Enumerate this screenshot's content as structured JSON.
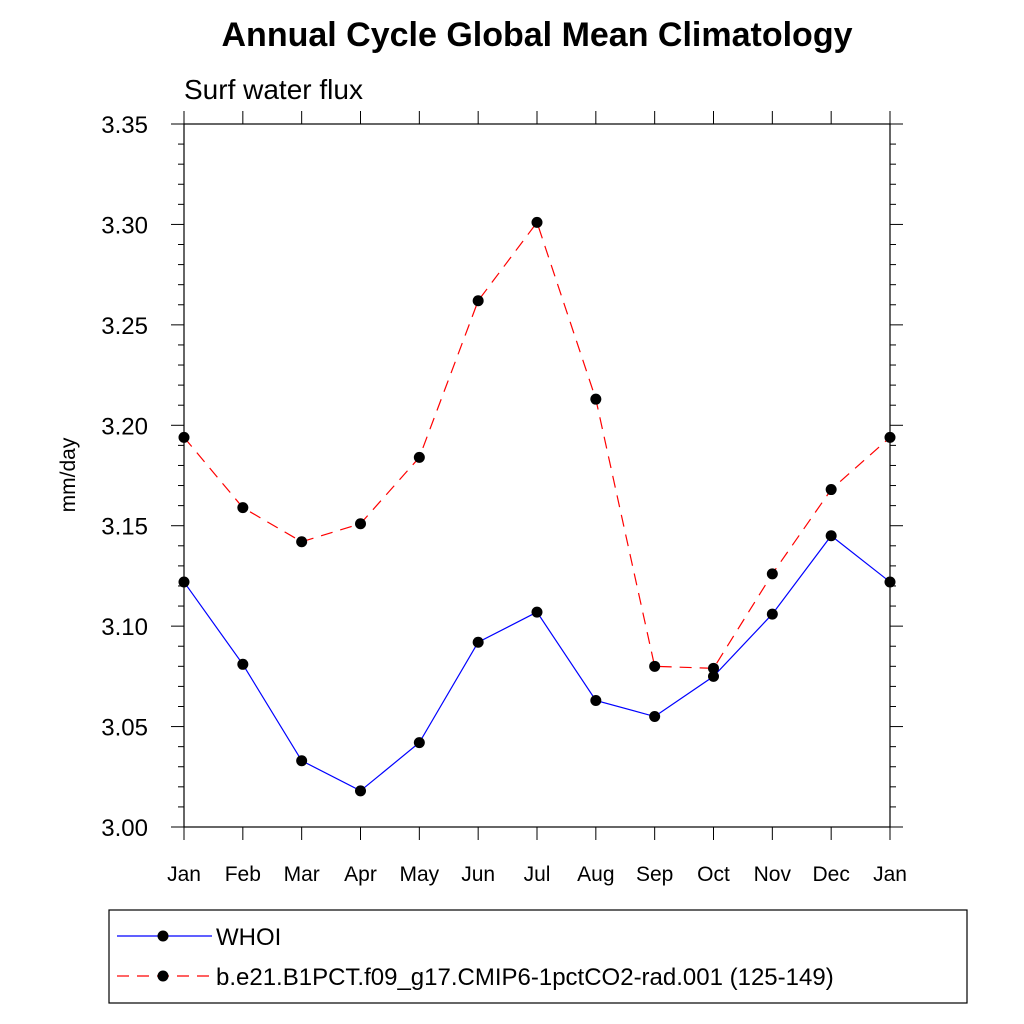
{
  "chart_data": {
    "type": "line",
    "title": "Annual Cycle Global Mean Climatology",
    "subtitle": "Surf water flux",
    "xlabel": "",
    "ylabel": "mm/day",
    "categories": [
      "Jan",
      "Feb",
      "Mar",
      "Apr",
      "May",
      "Jun",
      "Jul",
      "Aug",
      "Sep",
      "Oct",
      "Nov",
      "Dec",
      "Jan"
    ],
    "ylim": [
      3.0,
      3.35
    ],
    "yticks": [
      "3.00",
      "3.05",
      "3.10",
      "3.15",
      "3.20",
      "3.25",
      "3.30",
      "3.35"
    ],
    "grid": false,
    "legend_position": "bottom",
    "series": [
      {
        "name": "WHOI",
        "color": "#0000ff",
        "style": "solid",
        "marker": "circle",
        "values": [
          3.122,
          3.081,
          3.033,
          3.018,
          3.042,
          3.092,
          3.107,
          3.063,
          3.055,
          3.075,
          3.106,
          3.145,
          3.122
        ]
      },
      {
        "name": "b.e21.B1PCT.f09_g17.CMIP6-1pctCO2-rad.001 (125-149)",
        "color": "#ff0000",
        "style": "dashed",
        "marker": "circle",
        "values": [
          3.194,
          3.159,
          3.142,
          3.151,
          3.184,
          3.262,
          3.301,
          3.213,
          3.08,
          3.079,
          3.126,
          3.168,
          3.194
        ]
      }
    ]
  }
}
